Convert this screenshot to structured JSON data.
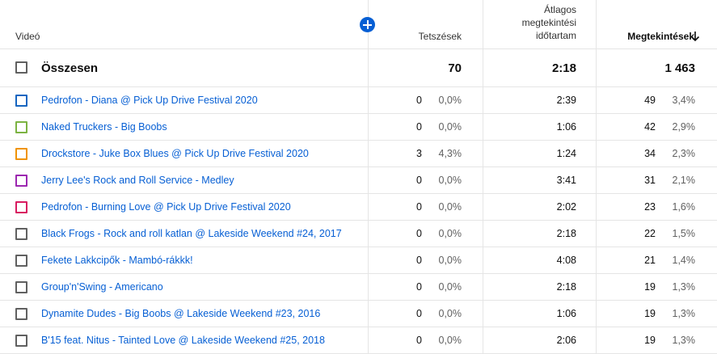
{
  "header": {
    "video": "Videó",
    "likes": "Tetszések",
    "avg_line1": "Átlagos",
    "avg_line2": "megtekintési",
    "avg_line3": "időtartam",
    "views": "Megtekintések",
    "add_icon": "plus-circle-icon",
    "sort_icon": "arrow-down-icon",
    "accent": "#065fd4"
  },
  "total": {
    "label": "Összesen",
    "likes": "70",
    "avg": "2:18",
    "views": "1 463"
  },
  "rows": [
    {
      "title": "Pedrofon - Diana @ Pick Up Drive Festival 2020",
      "likes": "0",
      "likes_pct": "0,0%",
      "avg": "2:39",
      "views": "49",
      "views_pct": "3,4%",
      "color": "#1565c0"
    },
    {
      "title": "Naked Truckers - Big Boobs",
      "likes": "0",
      "likes_pct": "0,0%",
      "avg": "1:06",
      "views": "42",
      "views_pct": "2,9%",
      "color": "#7cb342"
    },
    {
      "title": "Drockstore - Juke Box Blues @ Pick Up Drive Festival 2020",
      "likes": "3",
      "likes_pct": "4,3%",
      "avg": "1:24",
      "views": "34",
      "views_pct": "2,3%",
      "color": "#f09300"
    },
    {
      "title": "Jerry Lee's Rock and Roll Service - Medley",
      "likes": "0",
      "likes_pct": "0,0%",
      "avg": "3:41",
      "views": "31",
      "views_pct": "2,1%",
      "color": "#9c27b0"
    },
    {
      "title": "Pedrofon - Burning Love @ Pick Up Drive Festival 2020",
      "likes": "0",
      "likes_pct": "0,0%",
      "avg": "2:02",
      "views": "23",
      "views_pct": "1,6%",
      "color": "#d81b60"
    },
    {
      "title": "Black Frogs - Rock and roll katlan @ Lakeside Weekend #24, 2017",
      "likes": "0",
      "likes_pct": "0,0%",
      "avg": "2:18",
      "views": "22",
      "views_pct": "1,5%",
      "color": "#606060"
    },
    {
      "title": "Fekete Lakkcipők - Mambó-rákkk!",
      "likes": "0",
      "likes_pct": "0,0%",
      "avg": "4:08",
      "views": "21",
      "views_pct": "1,4%",
      "color": "#606060"
    },
    {
      "title": "Group'n'Swing - Americano",
      "likes": "0",
      "likes_pct": "0,0%",
      "avg": "2:18",
      "views": "19",
      "views_pct": "1,3%",
      "color": "#606060"
    },
    {
      "title": "Dynamite Dudes - Big Boobs @ Lakeside Weekend #23, 2016",
      "likes": "0",
      "likes_pct": "0,0%",
      "avg": "1:06",
      "views": "19",
      "views_pct": "1,3%",
      "color": "#606060"
    },
    {
      "title": "B'15 feat. Nitus - Tainted Love @ Lakeside Weekend #25, 2018",
      "likes": "0",
      "likes_pct": "0,0%",
      "avg": "2:06",
      "views": "19",
      "views_pct": "1,3%",
      "color": "#606060"
    }
  ]
}
